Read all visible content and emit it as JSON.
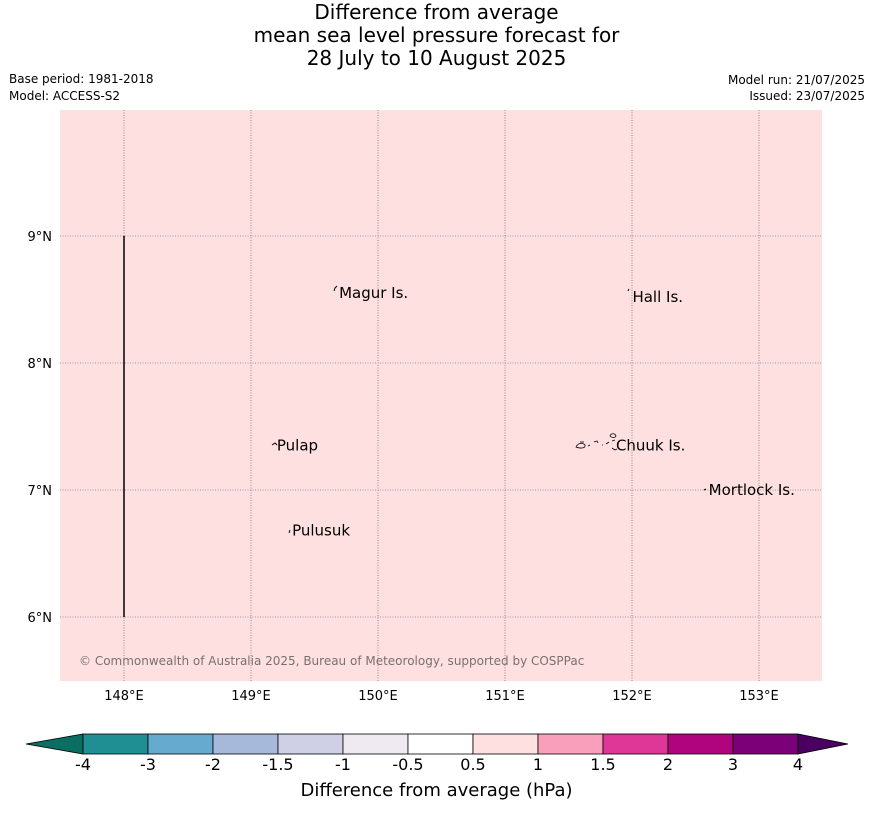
{
  "title": {
    "line1": "Difference from average",
    "line2": "mean sea level pressure forecast for",
    "line3": "28 July to 10 August 2025"
  },
  "meta": {
    "base_period": "Base period: 1981-2018",
    "model": "Model: ACCESS-S2",
    "model_run": "Model run: 21/07/2025",
    "issued": "Issued: 23/07/2025"
  },
  "map": {
    "fill_color": "#fde0df",
    "fill_category": "0.5 to 1",
    "lon_ticks": [
      "148°E",
      "149°E",
      "150°E",
      "151°E",
      "152°E",
      "153°E"
    ],
    "lat_ticks": [
      "9°N",
      "8°N",
      "7°N",
      "6°N"
    ],
    "places": [
      {
        "name": "Magur Is.",
        "lon": 149.67,
        "lat": 8.55
      },
      {
        "name": "Hall Is.",
        "lon": 151.98,
        "lat": 8.52
      },
      {
        "name": "Pulap",
        "lon": 149.18,
        "lat": 7.35
      },
      {
        "name": "Chuuk Is.",
        "lon": 151.85,
        "lat": 7.35
      },
      {
        "name": "Mortlock Is.",
        "lon": 152.58,
        "lat": 7.0
      },
      {
        "name": "Pulusuk",
        "lon": 149.3,
        "lat": 6.68
      }
    ],
    "reference_line": {
      "lon": 148.0,
      "lat_from": 6.0,
      "lat_to": 9.0
    },
    "copyright": "© Commonwealth of Australia 2025, Bureau of Meteorology, supported by COSPPac"
  },
  "colorbar": {
    "title": "Difference from average (hPa)",
    "low_extend_color": "#0b6e62",
    "high_extend_color": "#4a0060",
    "bins": [
      {
        "from": -4,
        "to": -3,
        "color": "#1f8f94"
      },
      {
        "from": -3,
        "to": -2,
        "color": "#67aad0"
      },
      {
        "from": -2,
        "to": -1.5,
        "color": "#a6b9da"
      },
      {
        "from": -1.5,
        "to": -1,
        "color": "#cfd0e6"
      },
      {
        "from": -1,
        "to": -0.5,
        "color": "#efeaf1"
      },
      {
        "from": -0.5,
        "to": 0.5,
        "color": "#ffffff"
      },
      {
        "from": 0.5,
        "to": 1,
        "color": "#fde0df"
      },
      {
        "from": 1,
        "to": 1.5,
        "color": "#f99fbb"
      },
      {
        "from": 1.5,
        "to": 2,
        "color": "#df3797"
      },
      {
        "from": 2,
        "to": 3,
        "color": "#b0037e"
      },
      {
        "from": 3,
        "to": 4,
        "color": "#7c0078"
      }
    ],
    "labels": [
      "-4",
      "-3",
      "-2",
      "-1.5",
      "-1",
      "-0.5",
      "0.5",
      "1",
      "1.5",
      "2",
      "3",
      "4"
    ]
  }
}
